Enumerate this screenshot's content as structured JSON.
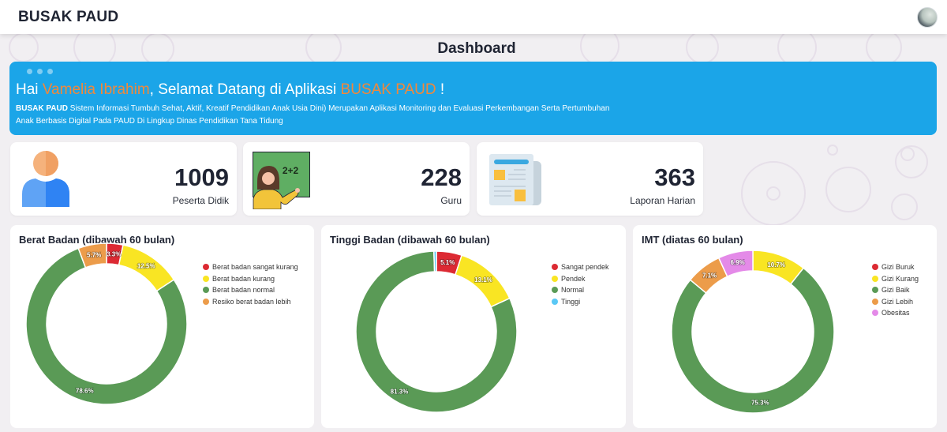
{
  "navbar": {
    "brand": "BUSAK PAUD",
    "avatar_icon": "user-avatar"
  },
  "page": {
    "title": "Dashboard"
  },
  "welcome": {
    "greeting_prefix": "Hai ",
    "user_name": "Vamelia Ibrahim",
    "greeting_middle": ", Selamat Datang di Aplikasi ",
    "app_name": "BUSAK PAUD",
    "greeting_suffix": " !",
    "desc_bold": "BUSAK PAUD",
    "desc_text": " Sistem Informasi Tumbuh Sehat, Aktif, Kreatif Pendidikan Anak Usia Dini) Merupakan Aplikasi Monitoring dan Evaluasi Perkembangan Serta Pertumbuhan Anak Berbasis Digital Pada PAUD Di Lingkup Dinas Pendidikan Tana Tidung",
    "accent_color": "#f2883a",
    "banner_color": "#1ba5e8"
  },
  "stats": [
    {
      "value": "1009",
      "label": "Peserta Didik",
      "icon": "student-icon"
    },
    {
      "value": "228",
      "label": "Guru",
      "icon": "teacher-icon"
    },
    {
      "value": "363",
      "label": "Laporan Harian",
      "icon": "report-icon"
    }
  ],
  "chart_data": [
    {
      "type": "pie",
      "variant": "doughnut",
      "title": "Berat Badan (dibawah 60 bulan)",
      "categories": [
        "Berat badan sangat kurang",
        "Berat badan kurang",
        "Berat badan normal",
        "Resiko berat badan lebih"
      ],
      "values": [
        3.3,
        12.5,
        78.6,
        5.7
      ],
      "labels": [
        "3.3%",
        "12.5%",
        "78.6%",
        "5.7%"
      ],
      "colors": [
        "#dc2a33",
        "#f9e523",
        "#5a9a56",
        "#ec9c4a"
      ],
      "legend": "right"
    },
    {
      "type": "pie",
      "variant": "doughnut",
      "title": "Tinggi Badan (dibawah 60 bulan)",
      "categories": [
        "Sangat pendek",
        "Pendek",
        "Normal",
        "Tinggi"
      ],
      "values": [
        5.1,
        13.1,
        81.3,
        0.5
      ],
      "labels": [
        "5.1%",
        "13.1%",
        "81.3%",
        ""
      ],
      "colors": [
        "#dc2a33",
        "#f9e523",
        "#5a9a56",
        "#5ac8f5"
      ],
      "legend": "right"
    },
    {
      "type": "pie",
      "variant": "doughnut",
      "title": "IMT (diatas 60 bulan)",
      "categories": [
        "Gizi Buruk",
        "Gizi Kurang",
        "Gizi Baik",
        "Gizi Lebih",
        "Obesitas"
      ],
      "values": [
        0,
        10.7,
        75.3,
        7.1,
        6.9
      ],
      "labels": [
        "",
        "10.7%",
        "75.3%",
        "7.1%",
        "6.9%"
      ],
      "colors": [
        "#dc2a33",
        "#f9e523",
        "#5a9a56",
        "#ec9c4a",
        "#e48ae8"
      ],
      "legend": "right"
    }
  ]
}
